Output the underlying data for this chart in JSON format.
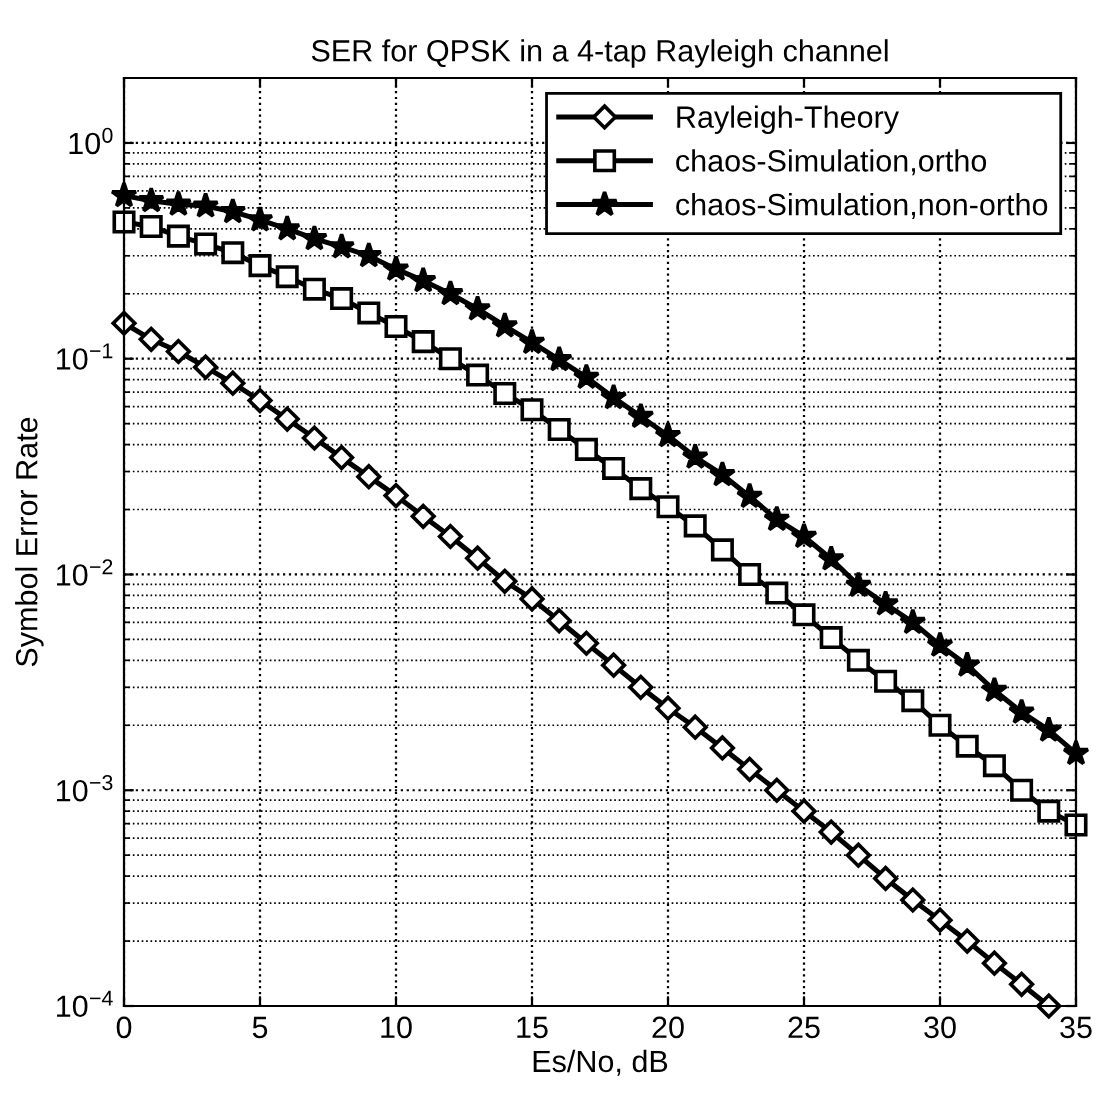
{
  "chart_data": {
    "type": "line",
    "title": "SER for QPSK in a 4-tap Rayleigh channel",
    "xlabel": "Es/No, dB",
    "ylabel": "Symbol Error Rate",
    "log": "y",
    "grid": true,
    "legend": "top right",
    "line_style": "solid",
    "xlim": [
      0,
      35
    ],
    "xticks": [
      0,
      5,
      10,
      15,
      20,
      25,
      30,
      35
    ],
    "ylim": [
      0.0001,
      2
    ],
    "yticks": [
      {
        "value": 0.0001,
        "label": "10$^{−4}$"
      },
      {
        "value": 0.001,
        "label": "10$^{−3}$"
      },
      {
        "value": 0.01,
        "label": "10$^{−2}$"
      },
      {
        "value": 0.1,
        "label": "10$^{−1}$"
      },
      {
        "value": 1,
        "label": "10$^{0}$"
      }
    ],
    "series": [
      {
        "name": "Rayleigh-Theory",
        "color": "#000000",
        "marker": "diamond",
        "x": [
          0,
          1,
          2,
          3,
          4,
          5,
          6,
          7,
          8,
          9,
          10,
          11,
          12,
          13,
          14,
          15,
          16,
          17,
          18,
          19,
          20,
          21,
          22,
          23,
          24,
          25,
          26,
          27,
          28,
          29,
          30,
          31,
          32,
          33,
          34
        ],
        "values": [
          0.146,
          0.123,
          0.108,
          0.0914,
          0.077,
          0.064,
          0.0525,
          0.0429,
          0.0348,
          0.0284,
          0.0232,
          0.0186,
          0.015,
          0.0119,
          0.0093,
          0.0077,
          0.0061,
          0.0048,
          0.0038,
          0.003,
          0.0024,
          0.00196,
          0.00157,
          0.00125,
          0.001,
          0.0008,
          0.00064,
          0.0005,
          0.00039,
          0.00031,
          0.00025,
          0.0002,
          0.000158,
          0.000126,
          0.0001
        ]
      },
      {
        "name": "chaos-Simulation,ortho",
        "color": "#000000",
        "marker": "square",
        "x": [
          0,
          1,
          2,
          3,
          4,
          5,
          6,
          7,
          8,
          9,
          10,
          11,
          12,
          13,
          14,
          15,
          16,
          17,
          18,
          19,
          20,
          21,
          22,
          23,
          24,
          25,
          26,
          27,
          28,
          29,
          30,
          31,
          32,
          33,
          34,
          35
        ],
        "values": [
          0.43,
          0.41,
          0.37,
          0.34,
          0.31,
          0.27,
          0.24,
          0.21,
          0.19,
          0.163,
          0.141,
          0.12,
          0.1,
          0.084,
          0.069,
          0.058,
          0.047,
          0.038,
          0.031,
          0.025,
          0.0206,
          0.0168,
          0.013,
          0.01,
          0.0082,
          0.0065,
          0.0051,
          0.004,
          0.0032,
          0.0026,
          0.002,
          0.0016,
          0.0013,
          0.001,
          0.0008,
          0.00069
        ]
      },
      {
        "name": "chaos-Simulation,non-ortho",
        "color": "#000000",
        "marker": "star",
        "x": [
          0,
          1,
          2,
          3,
          4,
          5,
          6,
          7,
          8,
          9,
          10,
          11,
          12,
          13,
          14,
          15,
          16,
          17,
          18,
          19,
          20,
          21,
          22,
          23,
          24,
          25,
          26,
          27,
          28,
          29,
          30,
          31,
          32,
          33,
          34,
          35
        ],
        "values": [
          0.57,
          0.54,
          0.52,
          0.51,
          0.48,
          0.44,
          0.4,
          0.36,
          0.33,
          0.3,
          0.26,
          0.23,
          0.2,
          0.17,
          0.142,
          0.119,
          0.099,
          0.082,
          0.066,
          0.054,
          0.044,
          0.035,
          0.029,
          0.023,
          0.018,
          0.015,
          0.0118,
          0.0089,
          0.0073,
          0.006,
          0.0047,
          0.0038,
          0.0029,
          0.0023,
          0.0019,
          0.00148
        ]
      }
    ]
  }
}
